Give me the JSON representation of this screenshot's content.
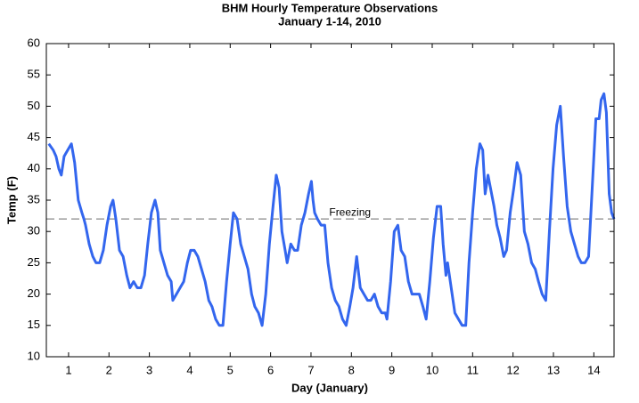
{
  "chart_data": {
    "type": "line",
    "title": "BHM Hourly Temperature Observations",
    "subtitle": "January 1-14, 2010",
    "xlabel": "Day (January)",
    "ylabel": "Temp (F)",
    "x": [
      0.51,
      0.62,
      0.69,
      0.76,
      0.82,
      0.89,
      0.98,
      1.07,
      1.15,
      1.24,
      1.33,
      1.38,
      1.42,
      1.51,
      1.6,
      1.68,
      1.77,
      1.86,
      1.95,
      2.04,
      2.1,
      2.17,
      2.26,
      2.35,
      2.44,
      2.52,
      2.61,
      2.7,
      2.79,
      2.88,
      2.96,
      3.05,
      3.14,
      3.21,
      3.27,
      3.36,
      3.45,
      3.54,
      3.58,
      3.67,
      3.76,
      3.85,
      3.94,
      4.02,
      4.11,
      4.2,
      4.29,
      4.38,
      4.47,
      4.55,
      4.64,
      4.73,
      4.82,
      4.91,
      5.0,
      5.08,
      5.17,
      5.26,
      5.35,
      5.44,
      5.53,
      5.61,
      5.7,
      5.79,
      5.88,
      5.97,
      6.06,
      6.14,
      6.21,
      6.28,
      6.36,
      6.41,
      6.5,
      6.59,
      6.67,
      6.76,
      6.85,
      6.94,
      7.01,
      7.05,
      7.09,
      7.16,
      7.25,
      7.34,
      7.42,
      7.51,
      7.6,
      7.69,
      7.78,
      7.87,
      7.96,
      8.04,
      8.13,
      8.22,
      8.31,
      8.4,
      8.48,
      8.57,
      8.66,
      8.75,
      8.84,
      8.88,
      8.97,
      9.06,
      9.15,
      9.23,
      9.32,
      9.41,
      9.5,
      9.59,
      9.68,
      9.77,
      9.85,
      9.94,
      10.03,
      10.12,
      10.21,
      10.27,
      10.34,
      10.38,
      10.47,
      10.56,
      10.65,
      10.74,
      10.83,
      10.91,
      11.0,
      11.09,
      11.18,
      11.25,
      11.31,
      11.38,
      11.44,
      11.53,
      11.6,
      11.68,
      11.77,
      11.84,
      11.93,
      12.02,
      12.1,
      12.19,
      12.28,
      12.37,
      12.46,
      12.55,
      12.63,
      12.72,
      12.81,
      12.9,
      12.99,
      13.08,
      13.17,
      13.25,
      13.34,
      13.43,
      13.52,
      13.61,
      13.69,
      13.78,
      13.87,
      13.96,
      14.05,
      14.13,
      14.18,
      14.25,
      14.31,
      14.38,
      14.44,
      14.5
    ],
    "values": [
      44,
      43,
      42,
      40,
      39,
      42,
      43,
      44,
      41,
      35,
      33,
      32,
      31,
      28,
      26,
      25,
      25,
      27,
      31,
      34,
      35,
      32,
      27,
      26,
      23,
      21,
      22,
      21,
      21,
      23,
      28,
      33,
      35,
      33,
      27,
      25,
      23,
      22,
      19,
      20,
      21,
      22,
      25,
      27,
      27,
      26,
      24,
      22,
      19,
      18,
      16,
      15,
      15,
      22,
      28,
      33,
      32,
      28,
      26,
      24,
      20,
      18,
      17,
      15,
      20,
      28,
      34,
      39,
      37,
      30,
      27,
      25,
      28,
      27,
      27,
      31,
      33,
      36,
      38,
      35,
      33,
      32,
      31,
      31,
      25,
      21,
      19,
      18,
      16,
      15,
      18,
      21,
      26,
      21,
      20,
      19,
      19,
      20,
      18,
      17,
      17,
      16,
      22,
      30,
      31,
      27,
      26,
      22,
      20,
      20,
      20,
      18,
      16,
      22,
      29,
      34,
      34,
      28,
      23,
      25,
      21,
      17,
      16,
      15,
      15,
      25,
      33,
      40,
      44,
      43,
      36,
      39,
      37,
      34,
      31,
      29,
      26,
      27,
      33,
      37,
      41,
      39,
      30,
      28,
      25,
      24,
      22,
      20,
      19,
      30,
      40,
      47,
      50,
      42,
      34,
      30,
      28,
      26,
      25,
      25,
      26,
      37,
      48,
      48,
      51,
      52,
      49,
      36,
      33,
      32
    ],
    "color": "#3366ee",
    "xlim": [
      0.45,
      14.5
    ],
    "ylim": [
      10,
      60
    ],
    "xticks": [
      1,
      2,
      3,
      4,
      5,
      6,
      7,
      8,
      9,
      10,
      11,
      12,
      13,
      14
    ],
    "yticks": [
      10,
      15,
      20,
      25,
      30,
      35,
      40,
      45,
      50,
      55,
      60
    ],
    "reference_line": {
      "value": 32,
      "label": "Freezing"
    }
  }
}
